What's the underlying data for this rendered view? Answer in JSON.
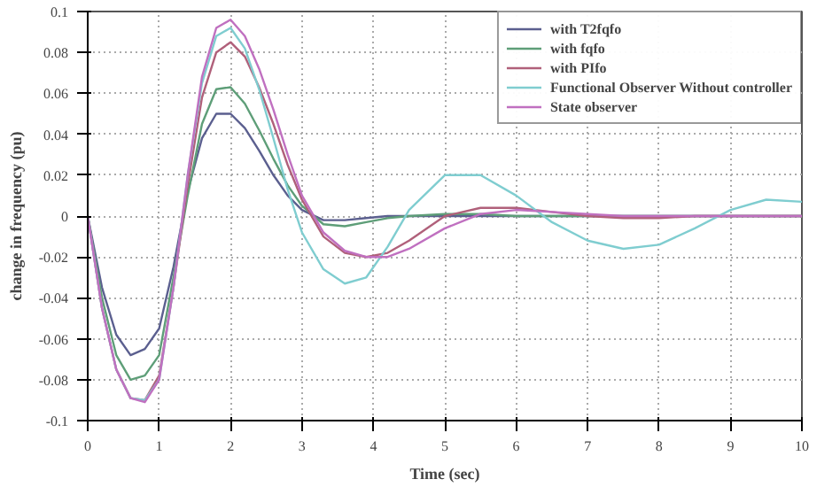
{
  "chart_data": {
    "type": "line",
    "xlabel": "Time (sec)",
    "ylabel": "change in frequency (pu)",
    "x": [
      0,
      0.2,
      0.4,
      0.6,
      0.8,
      1.0,
      1.2,
      1.4,
      1.6,
      1.8,
      2.0,
      2.2,
      2.4,
      2.6,
      2.8,
      3.0,
      3.3,
      3.6,
      3.9,
      4.2,
      4.5,
      5,
      5.5,
      6,
      6.5,
      7,
      7.5,
      8,
      8.5,
      9,
      9.5,
      10
    ],
    "series": [
      {
        "name": "with T2fqfo",
        "color": "#5b5f8f",
        "values": [
          0,
          -0.035,
          -0.058,
          -0.068,
          -0.065,
          -0.055,
          -0.025,
          0.012,
          0.038,
          0.05,
          0.05,
          0.043,
          0.032,
          0.02,
          0.01,
          0.003,
          -0.002,
          -0.002,
          -0.001,
          0,
          0,
          0,
          0,
          0,
          0,
          0,
          0,
          0,
          0,
          0,
          0,
          0
        ]
      },
      {
        "name": "with fqfo",
        "color": "#5e9e78",
        "values": [
          0,
          -0.04,
          -0.068,
          -0.08,
          -0.078,
          -0.068,
          -0.03,
          0.01,
          0.045,
          0.062,
          0.063,
          0.055,
          0.042,
          0.028,
          0.015,
          0.005,
          -0.004,
          -0.005,
          -0.003,
          -0.001,
          0,
          0.001,
          0.001,
          0,
          0,
          0,
          0,
          0,
          0,
          0,
          0,
          0
        ]
      },
      {
        "name": "with PIfo",
        "color": "#b0607a",
        "values": [
          0,
          -0.045,
          -0.075,
          -0.089,
          -0.09,
          -0.078,
          -0.035,
          0.015,
          0.058,
          0.08,
          0.085,
          0.078,
          0.063,
          0.045,
          0.025,
          0.008,
          -0.01,
          -0.018,
          -0.02,
          -0.018,
          -0.012,
          0,
          0.004,
          0.004,
          0.002,
          0,
          -0.001,
          -0.001,
          0,
          0,
          0,
          0
        ]
      },
      {
        "name": "Functional Observer Without controller",
        "color": "#7fcdd0",
        "values": [
          0,
          -0.045,
          -0.075,
          -0.089,
          -0.09,
          -0.08,
          -0.035,
          0.02,
          0.065,
          0.088,
          0.092,
          0.082,
          0.062,
          0.038,
          0.013,
          -0.008,
          -0.026,
          -0.033,
          -0.03,
          -0.015,
          0.003,
          0.02,
          0.02,
          0.01,
          -0.003,
          -0.012,
          -0.016,
          -0.014,
          -0.006,
          0.003,
          0.008,
          0.007
        ]
      },
      {
        "name": "State observer",
        "color": "#c070c0",
        "values": [
          0,
          -0.045,
          -0.075,
          -0.089,
          -0.091,
          -0.08,
          -0.035,
          0.02,
          0.068,
          0.092,
          0.096,
          0.088,
          0.072,
          0.052,
          0.03,
          0.01,
          -0.008,
          -0.017,
          -0.02,
          -0.02,
          -0.016,
          -0.006,
          0.001,
          0.003,
          0.002,
          0.001,
          0,
          0,
          0,
          0,
          0,
          0
        ]
      }
    ],
    "xlim": [
      0,
      10
    ],
    "ylim": [
      -0.1,
      0.1
    ],
    "xticks": [
      0,
      1,
      2,
      3,
      4,
      5,
      6,
      7,
      8,
      9,
      10
    ],
    "yticks": [
      {
        "value": -0.1,
        "label": "-0.1"
      },
      -0.08,
      -0.06,
      -0.04,
      -0.02,
      0,
      0.02,
      0.04,
      0.06,
      0.08,
      {
        "value": 0.1,
        "label": "0.1"
      }
    ],
    "grid": true,
    "legend": "top right",
    "line_style": "solid",
    "marker": "none"
  }
}
